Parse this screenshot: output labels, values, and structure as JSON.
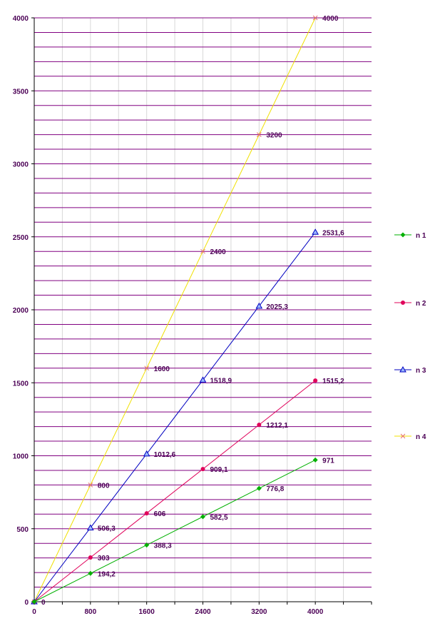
{
  "chart_data": {
    "type": "line",
    "x": [
      0,
      800,
      1600,
      2400,
      3200,
      4000
    ],
    "xlim": [
      0,
      4800
    ],
    "ylim": [
      0,
      4000
    ],
    "x_ticks": [
      "0",
      "800",
      "1600",
      "2400",
      "3200",
      "4000"
    ],
    "y_ticks": [
      "0",
      "500",
      "1000",
      "1500",
      "2000",
      "2500",
      "3000",
      "3500",
      "4000"
    ],
    "grid": true,
    "legend_position": "right",
    "series": [
      {
        "name": "n 1",
        "color": "#00b000",
        "marker": "diamond",
        "values": [
          0,
          194.2,
          388.3,
          582.5,
          776.8,
          971
        ],
        "labels": [
          "0",
          "194,2",
          "388,3",
          "582,5",
          "776,8",
          "971"
        ]
      },
      {
        "name": "n 2",
        "color": "#e0005a",
        "marker": "circle",
        "values": [
          0,
          303,
          606,
          909.1,
          1212.1,
          1515.2
        ],
        "labels": [
          "",
          "303",
          "606",
          "909,1",
          "1212,1",
          "1515,2"
        ]
      },
      {
        "name": "n 3",
        "color": "#0000c0",
        "marker": "triangle",
        "values": [
          0,
          506.3,
          1012.6,
          1518.9,
          2025.3,
          2531.6
        ],
        "labels": [
          "",
          "506,3",
          "1012,6",
          "1518,9",
          "2025,3",
          "2531,6"
        ]
      },
      {
        "name": "n 4",
        "color": "#f0e000",
        "marker": "cross",
        "values": [
          0,
          800,
          1600,
          2400,
          3200,
          4000
        ],
        "labels": [
          "",
          "800",
          "1600",
          "2400",
          "3200",
          "4000"
        ]
      }
    ]
  }
}
